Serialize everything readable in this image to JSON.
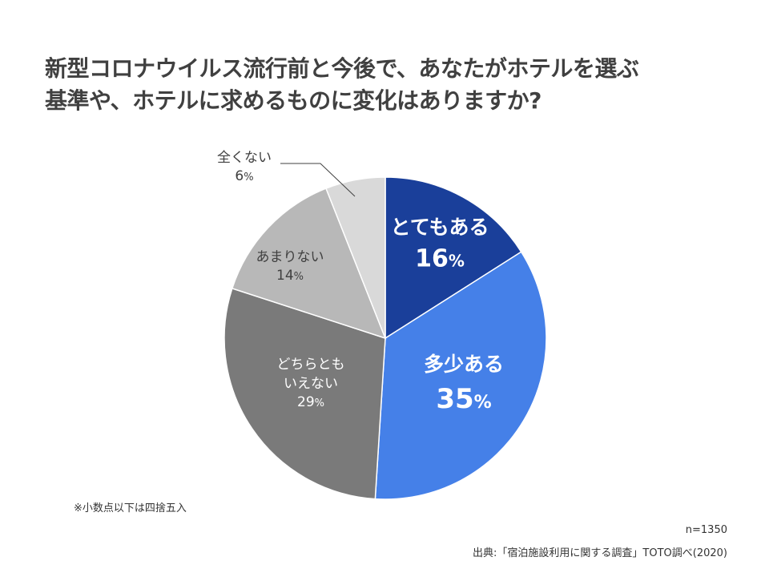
{
  "title_lines": [
    "新型コロナウイルス流行前と今後で、あなたがホテルを選ぶ",
    "基準や、ホテルに求めるものに変化はありますか?"
  ],
  "chart_data": {
    "type": "pie",
    "slices": [
      {
        "label_lines": [
          "とてもある"
        ],
        "value": 16,
        "display": "16",
        "color": "#1a3f9a",
        "text_color": "#ffffff",
        "bold": true
      },
      {
        "label_lines": [
          "多少ある"
        ],
        "value": 35,
        "display": "35",
        "color": "#4580e8",
        "text_color": "#ffffff",
        "bold": true
      },
      {
        "label_lines": [
          "どちらとも",
          "いえない"
        ],
        "value": 29,
        "display": "29",
        "color": "#7a7a7a",
        "text_color": "#ffffff",
        "bold": false
      },
      {
        "label_lines": [
          "あまりない"
        ],
        "value": 14,
        "display": "14",
        "color": "#b8b8b8",
        "text_color": "#404040",
        "bold": false
      },
      {
        "label_lines": [
          "全くない"
        ],
        "value": 6,
        "display": "6",
        "color": "#d9d9d9",
        "text_color": "#404040",
        "bold": false,
        "callout": true
      }
    ],
    "percent_sign": "%",
    "start": "12 o'clock, clockwise"
  },
  "footnote": "※小数点以下は四捨五入",
  "n_label": "n=1350",
  "source": "出典:「宿泊施設利用に関する調査」TOTO調べ(2020)"
}
